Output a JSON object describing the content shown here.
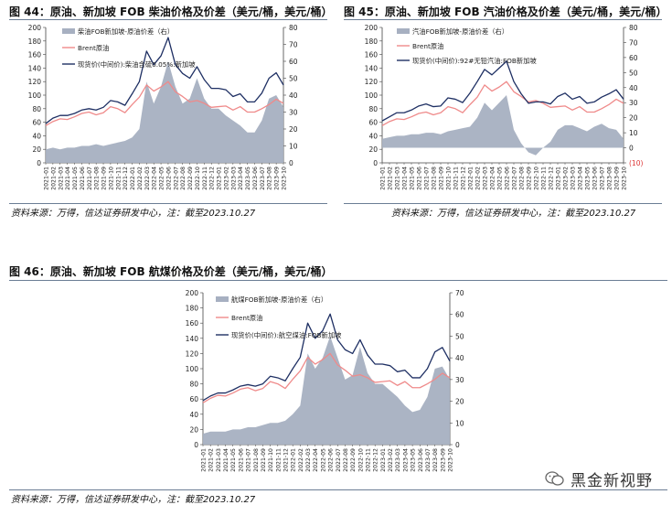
{
  "source_label": "资料来源：万得，信达证券研发中心，注：截至2023.10.27",
  "x_ticks": [
    "2021-01",
    "2021-02",
    "2021-03",
    "2021-04",
    "2021-05",
    "2021-06",
    "2021-07",
    "2021-08",
    "2021-09",
    "2021-10",
    "2021-11",
    "2021-12",
    "2022-01",
    "2022-02",
    "2022-03",
    "2022-04",
    "2022-05",
    "2022-06",
    "2022-07",
    "2022-08",
    "2022-09",
    "2022-10",
    "2022-11",
    "2022-12",
    "2023-01",
    "2023-02",
    "2023-03",
    "2023-04",
    "2023-05",
    "2023-06",
    "2023-07",
    "2023-08",
    "2023-09",
    "2023-10"
  ],
  "watermark": {
    "text": "黑金新视野",
    "icon": "wechat-icon"
  },
  "colors": {
    "spread": "#a7b0c1",
    "brent": "#ef8a8a",
    "product": "#1e2f63"
  },
  "chart_data": [
    {
      "id": "fig44",
      "type": "line",
      "title": "图 44：原油、新加坡 FOB 柴油价格及价差（美元/桶，美元/桶）",
      "ylim": [
        0,
        200
      ],
      "yticks": [
        0,
        20,
        40,
        60,
        80,
        100,
        120,
        140,
        160,
        180,
        200
      ],
      "y2lim": [
        0,
        80
      ],
      "y2ticks": [
        "0",
        "10",
        "20",
        "30",
        "40",
        "50",
        "60",
        "70",
        "80"
      ],
      "series": [
        {
          "name": "柴油FOB新加坡-原油价差（右）",
          "kind": "area",
          "axis": "right",
          "values": [
            8,
            9,
            8,
            9,
            9,
            10,
            10,
            11,
            10,
            11,
            12,
            13,
            15,
            20,
            48,
            35,
            45,
            60,
            45,
            35,
            38,
            50,
            38,
            32,
            32,
            28,
            25,
            22,
            18,
            18,
            25,
            38,
            40,
            33
          ]
        },
        {
          "name": "Brent原油",
          "kind": "line",
          "axis": "left",
          "values": [
            55,
            61,
            65,
            64,
            68,
            73,
            75,
            71,
            74,
            83,
            80,
            74,
            86,
            97,
            115,
            106,
            112,
            120,
            105,
            98,
            90,
            92,
            88,
            82,
            83,
            84,
            78,
            83,
            75,
            75,
            80,
            86,
            94,
            88
          ]
        },
        {
          "name": "现货价(中间价):柴油含硫0.05%:新加坡",
          "kind": "line",
          "axis": "left",
          "values": [
            58,
            66,
            70,
            70,
            73,
            78,
            80,
            78,
            82,
            92,
            90,
            85,
            102,
            120,
            165,
            145,
            158,
            185,
            145,
            132,
            125,
            142,
            123,
            110,
            110,
            108,
            98,
            102,
            90,
            90,
            103,
            125,
            133,
            115
          ]
        }
      ]
    },
    {
      "id": "fig45",
      "type": "line",
      "title": "图 45：原油、新加坡 FOB 汽油价格及价差（美元/桶，美元/桶）",
      "ylim": [
        0,
        200
      ],
      "yticks": [
        0,
        20,
        40,
        60,
        80,
        100,
        120,
        140,
        160,
        180,
        200
      ],
      "y2lim": [
        -10,
        80
      ],
      "y2ticks": [
        "(10)",
        "0",
        "10",
        "20",
        "30",
        "40",
        "50",
        "60",
        "70",
        "80"
      ],
      "series": [
        {
          "name": "汽油FOB新加坡-原油价差（右）",
          "kind": "area",
          "axis": "right",
          "values": [
            6,
            7,
            8,
            8,
            9,
            9,
            10,
            10,
            9,
            11,
            12,
            13,
            14,
            20,
            30,
            25,
            30,
            35,
            12,
            3,
            -3,
            -5,
            0,
            4,
            12,
            15,
            15,
            13,
            11,
            14,
            16,
            13,
            12,
            6
          ]
        },
        {
          "name": "Brent原油",
          "kind": "line",
          "axis": "left",
          "values": [
            55,
            61,
            65,
            64,
            68,
            73,
            75,
            71,
            74,
            83,
            80,
            74,
            86,
            97,
            115,
            106,
            112,
            120,
            105,
            98,
            90,
            92,
            88,
            82,
            83,
            84,
            78,
            83,
            75,
            75,
            80,
            86,
            94,
            88
          ]
        },
        {
          "name": "现货价(中间价):92#无铅汽油:FOB新加坡",
          "kind": "line",
          "axis": "left",
          "values": [
            62,
            68,
            74,
            74,
            78,
            84,
            87,
            83,
            84,
            96,
            94,
            89,
            103,
            120,
            138,
            130,
            140,
            150,
            120,
            102,
            88,
            90,
            90,
            87,
            98,
            103,
            94,
            98,
            88,
            90,
            97,
            102,
            108,
            94
          ]
        }
      ]
    },
    {
      "id": "fig46",
      "type": "line",
      "title": "图 46：原油、新加坡 FOB 航煤价格及价差（美元/桶，美元/桶）",
      "ylim": [
        0,
        200
      ],
      "yticks": [
        0,
        20,
        40,
        60,
        80,
        100,
        120,
        140,
        160,
        180,
        200
      ],
      "y2lim": [
        0,
        70
      ],
      "y2ticks": [
        "0",
        "10",
        "20",
        "30",
        "40",
        "50",
        "60",
        "70"
      ],
      "series": [
        {
          "name": "航煤FOB新加坡-原油价差（右）",
          "kind": "area",
          "axis": "right",
          "values": [
            5,
            6,
            6,
            6,
            7,
            7,
            8,
            8,
            9,
            10,
            10,
            11,
            14,
            18,
            42,
            35,
            40,
            50,
            40,
            30,
            32,
            45,
            33,
            28,
            28,
            25,
            22,
            18,
            15,
            16,
            22,
            35,
            36,
            30
          ]
        },
        {
          "name": "Brent原油",
          "kind": "line",
          "axis": "left",
          "values": [
            55,
            61,
            65,
            64,
            68,
            73,
            75,
            71,
            74,
            83,
            80,
            74,
            86,
            97,
            115,
            106,
            112,
            120,
            105,
            98,
            90,
            92,
            88,
            82,
            83,
            84,
            78,
            83,
            75,
            75,
            80,
            86,
            94,
            88
          ]
        },
        {
          "name": "现货价(中间价):航空煤油:FOB新加坡",
          "kind": "line",
          "axis": "left",
          "values": [
            58,
            64,
            68,
            68,
            72,
            77,
            79,
            77,
            80,
            90,
            88,
            84,
            100,
            115,
            160,
            140,
            150,
            172,
            138,
            125,
            120,
            138,
            118,
            106,
            106,
            104,
            96,
            98,
            88,
            88,
            100,
            122,
            128,
            110
          ]
        }
      ]
    }
  ]
}
